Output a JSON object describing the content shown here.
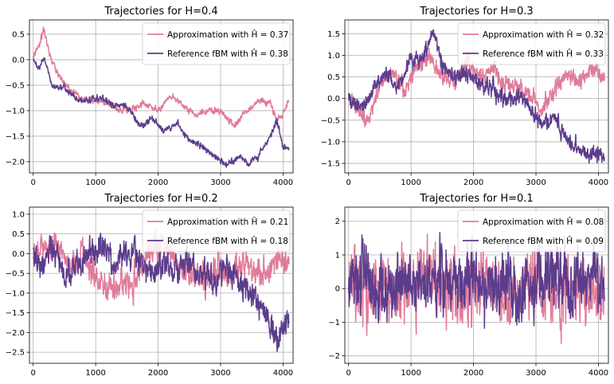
{
  "chart_data": [
    {
      "type": "line",
      "title": "Trajectories for H=0.4",
      "xlim": [
        -60,
        4160
      ],
      "ylim": [
        -2.22,
        0.78
      ],
      "xticks": [
        0,
        1000,
        2000,
        3000,
        4000
      ],
      "yticks": [
        -2.0,
        -1.5,
        -1.0,
        -0.5,
        0.0,
        0.5
      ],
      "ytick_labels": [
        "−2.0",
        "−1.5",
        "−1.0",
        "−0.5",
        "0.0",
        "0.5"
      ],
      "grid": true,
      "legend": "top-right",
      "seed": 101,
      "noise": 0.035,
      "series": [
        {
          "name": "Approximation with Ĥ = 0.37",
          "color": "#e07b99",
          "anchors": [
            [
              0,
              0.05
            ],
            [
              100,
              0.3
            ],
            [
              170,
              0.62
            ],
            [
              250,
              0.15
            ],
            [
              400,
              -0.3
            ],
            [
              600,
              -0.6
            ],
            [
              800,
              -0.75
            ],
            [
              1000,
              -0.8
            ],
            [
              1200,
              -0.85
            ],
            [
              1400,
              -1.0
            ],
            [
              1600,
              -0.95
            ],
            [
              1800,
              -0.85
            ],
            [
              2000,
              -1.0
            ],
            [
              2200,
              -0.7
            ],
            [
              2400,
              -0.9
            ],
            [
              2600,
              -1.1
            ],
            [
              2800,
              -1.0
            ],
            [
              3000,
              -1.0
            ],
            [
              3200,
              -1.3
            ],
            [
              3400,
              -1.05
            ],
            [
              3600,
              -0.8
            ],
            [
              3800,
              -0.85
            ],
            [
              3900,
              -1.2
            ],
            [
              4000,
              -1.05
            ],
            [
              4096,
              -0.8
            ]
          ]
        },
        {
          "name": "Reference fBM with Ĥ = 0.38",
          "color": "#5c3d8c",
          "anchors": [
            [
              0,
              0.0
            ],
            [
              80,
              -0.2
            ],
            [
              170,
              0.05
            ],
            [
              300,
              -0.5
            ],
            [
              500,
              -0.55
            ],
            [
              700,
              -0.8
            ],
            [
              900,
              -0.8
            ],
            [
              1100,
              -0.75
            ],
            [
              1300,
              -0.9
            ],
            [
              1500,
              -0.9
            ],
            [
              1700,
              -1.3
            ],
            [
              1900,
              -1.15
            ],
            [
              2100,
              -1.4
            ],
            [
              2300,
              -1.25
            ],
            [
              2500,
              -1.6
            ],
            [
              2700,
              -1.7
            ],
            [
              2900,
              -1.9
            ],
            [
              3100,
              -2.05
            ],
            [
              3300,
              -1.9
            ],
            [
              3450,
              -2.05
            ],
            [
              3600,
              -1.9
            ],
            [
              3800,
              -1.5
            ],
            [
              3900,
              -1.2
            ],
            [
              4000,
              -1.7
            ],
            [
              4096,
              -1.75
            ]
          ]
        }
      ]
    },
    {
      "type": "line",
      "title": "Trajectories for H=0.3",
      "xlim": [
        -60,
        4160
      ],
      "ylim": [
        -1.72,
        1.82
      ],
      "xticks": [
        0,
        1000,
        2000,
        3000,
        4000
      ],
      "yticks": [
        -1.5,
        -1.0,
        -0.5,
        0.0,
        0.5,
        1.0,
        1.5
      ],
      "ytick_labels": [
        "−1.5",
        "−1.0",
        "−0.5",
        "0.0",
        "0.5",
        "1.0",
        "1.5"
      ],
      "grid": true,
      "legend": "top-right",
      "seed": 202,
      "noise": 0.11,
      "series": [
        {
          "name": "Approximation with Ĥ = 0.32",
          "color": "#e07b99",
          "anchors": [
            [
              0,
              0.1
            ],
            [
              150,
              -0.3
            ],
            [
              300,
              -0.5
            ],
            [
              500,
              0.3
            ],
            [
              700,
              0.6
            ],
            [
              900,
              0.2
            ],
            [
              1100,
              0.8
            ],
            [
              1300,
              0.9
            ],
            [
              1500,
              0.6
            ],
            [
              1700,
              0.4
            ],
            [
              1900,
              0.9
            ],
            [
              2100,
              0.5
            ],
            [
              2300,
              0.7
            ],
            [
              2500,
              0.4
            ],
            [
              2700,
              0.3
            ],
            [
              2900,
              0.0
            ],
            [
              3100,
              -0.3
            ],
            [
              3300,
              0.2
            ],
            [
              3500,
              0.6
            ],
            [
              3700,
              0.4
            ],
            [
              3900,
              0.7
            ],
            [
              4096,
              0.5
            ]
          ]
        },
        {
          "name": "Reference fBM with Ĥ = 0.33",
          "color": "#5c3d8c",
          "anchors": [
            [
              0,
              0.0
            ],
            [
              200,
              -0.2
            ],
            [
              400,
              0.2
            ],
            [
              600,
              0.6
            ],
            [
              800,
              0.3
            ],
            [
              1000,
              0.9
            ],
            [
              1200,
              1.0
            ],
            [
              1350,
              1.55
            ],
            [
              1500,
              0.8
            ],
            [
              1700,
              0.5
            ],
            [
              1900,
              0.6
            ],
            [
              2100,
              0.3
            ],
            [
              2300,
              0.2
            ],
            [
              2500,
              -0.1
            ],
            [
              2700,
              0.1
            ],
            [
              2900,
              -0.2
            ],
            [
              3100,
              -0.6
            ],
            [
              3300,
              -0.4
            ],
            [
              3500,
              -0.9
            ],
            [
              3700,
              -1.2
            ],
            [
              3900,
              -1.3
            ],
            [
              4096,
              -1.3
            ]
          ]
        }
      ]
    },
    {
      "type": "line",
      "title": "Trajectories for H=0.2",
      "xlim": [
        -60,
        4160
      ],
      "ylim": [
        -2.78,
        1.18
      ],
      "xticks": [
        0,
        1000,
        2000,
        3000,
        4000
      ],
      "yticks": [
        -2.5,
        -2.0,
        -1.5,
        -1.0,
        -0.5,
        0.0,
        0.5,
        1.0
      ],
      "ytick_labels": [
        "−2.5",
        "−2.0",
        "−1.5",
        "−1.0",
        "−0.5",
        "0.0",
        "0.5",
        "1.0"
      ],
      "grid": true,
      "legend": "top-right",
      "seed": 303,
      "noise": 0.2,
      "series": [
        {
          "name": "Approximation with Ĥ = 0.21",
          "color": "#e07b99",
          "anchors": [
            [
              0,
              0.0
            ],
            [
              200,
              0.1
            ],
            [
              400,
              0.3
            ],
            [
              600,
              -0.4
            ],
            [
              800,
              0.0
            ],
            [
              1000,
              -0.6
            ],
            [
              1200,
              -0.9
            ],
            [
              1400,
              -0.7
            ],
            [
              1600,
              -0.8
            ],
            [
              1800,
              0.0
            ],
            [
              2000,
              0.2
            ],
            [
              2200,
              0.1
            ],
            [
              2400,
              -0.4
            ],
            [
              2600,
              -0.6
            ],
            [
              2800,
              -0.7
            ],
            [
              3000,
              -0.4
            ],
            [
              3200,
              -0.5
            ],
            [
              3400,
              -0.3
            ],
            [
              3600,
              -0.5
            ],
            [
              3800,
              -0.4
            ],
            [
              3950,
              0.0
            ],
            [
              4096,
              -0.5
            ]
          ]
        },
        {
          "name": "Reference fBM with Ĥ = 0.18",
          "color": "#5c3d8c",
          "anchors": [
            [
              0,
              0.0
            ],
            [
              150,
              -0.3
            ],
            [
              300,
              0.2
            ],
            [
              500,
              -0.6
            ],
            [
              700,
              -0.3
            ],
            [
              900,
              0.0
            ],
            [
              1100,
              0.2
            ],
            [
              1300,
              -0.3
            ],
            [
              1500,
              0.1
            ],
            [
              1700,
              -0.2
            ],
            [
              1900,
              -0.5
            ],
            [
              2100,
              -0.3
            ],
            [
              2300,
              -0.5
            ],
            [
              2500,
              -0.2
            ],
            [
              2700,
              -0.5
            ],
            [
              2900,
              -0.6
            ],
            [
              3100,
              -0.4
            ],
            [
              3300,
              -0.7
            ],
            [
              3500,
              -1.0
            ],
            [
              3700,
              -1.4
            ],
            [
              3900,
              -2.2
            ],
            [
              4000,
              -1.8
            ],
            [
              4096,
              -1.6
            ]
          ]
        }
      ]
    },
    {
      "type": "line",
      "title": "Trajectories for H=0.1",
      "xlim": [
        -60,
        4160
      ],
      "ylim": [
        -2.22,
        2.42
      ],
      "xticks": [
        0,
        1000,
        2000,
        3000,
        4000
      ],
      "yticks": [
        -2,
        -1,
        0,
        1,
        2
      ],
      "ytick_labels": [
        "−2",
        "−1",
        "0",
        "1",
        "2"
      ],
      "grid": true,
      "legend": "top-right",
      "seed": 404,
      "noise": 0.55,
      "series": [
        {
          "name": "Approximation with Ĥ = 0.08",
          "color": "#e07b99",
          "anchors": [
            [
              0,
              0.2
            ],
            [
              300,
              -0.2
            ],
            [
              500,
              0.3
            ],
            [
              800,
              -0.3
            ],
            [
              1000,
              0.2
            ],
            [
              1300,
              0.6
            ],
            [
              1500,
              0.0
            ],
            [
              1800,
              -0.2
            ],
            [
              2000,
              0.2
            ],
            [
              2200,
              0.3
            ],
            [
              2500,
              -0.2
            ],
            [
              2700,
              0.0
            ],
            [
              3000,
              0.3
            ],
            [
              3300,
              -0.2
            ],
            [
              3600,
              0.1
            ],
            [
              3900,
              -0.2
            ],
            [
              4096,
              0.0
            ]
          ]
        },
        {
          "name": "Reference fBM with Ĥ = 0.09",
          "color": "#5c3d8c",
          "anchors": [
            [
              0,
              0.2
            ],
            [
              300,
              0.3
            ],
            [
              500,
              -0.3
            ],
            [
              800,
              0.2
            ],
            [
              1000,
              0.5
            ],
            [
              1300,
              0.0
            ],
            [
              1500,
              0.3
            ],
            [
              1800,
              0.1
            ],
            [
              2000,
              0.3
            ],
            [
              2200,
              0.0
            ],
            [
              2500,
              0.2
            ],
            [
              2700,
              -0.2
            ],
            [
              3000,
              0.1
            ],
            [
              3300,
              0.2
            ],
            [
              3600,
              -0.1
            ],
            [
              3900,
              0.2
            ],
            [
              4096,
              0.1
            ]
          ]
        }
      ]
    }
  ]
}
